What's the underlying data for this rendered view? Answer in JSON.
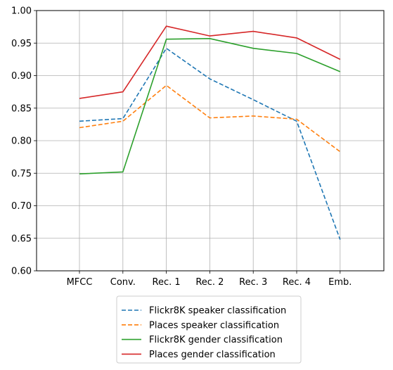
{
  "chart_data": {
    "type": "line",
    "categories": [
      "MFCC",
      "Conv.",
      "Rec. 1",
      "Rec. 2",
      "Rec. 3",
      "Rec. 4",
      "Emb."
    ],
    "ylim": [
      0.6,
      1.0
    ],
    "yticks": [
      "0.60",
      "0.65",
      "0.70",
      "0.75",
      "0.80",
      "0.85",
      "0.90",
      "0.95",
      "1.00"
    ],
    "grid": true,
    "legend_position": "bottom",
    "series": [
      {
        "name": "Flickr8K speaker classification",
        "color": "#1f77b4",
        "dashed": true,
        "values": [
          0.83,
          0.834,
          0.942,
          0.895,
          0.863,
          0.83,
          0.648
        ]
      },
      {
        "name": "Places speaker classification",
        "color": "#ff7f0e",
        "dashed": true,
        "values": [
          0.82,
          0.83,
          0.885,
          0.835,
          0.838,
          0.833,
          0.783
        ]
      },
      {
        "name": "Flickr8K gender classification",
        "color": "#2ca02c",
        "dashed": false,
        "values": [
          0.749,
          0.752,
          0.956,
          0.957,
          0.942,
          0.934,
          0.906
        ]
      },
      {
        "name": "Places gender classification",
        "color": "#d62728",
        "dashed": false,
        "values": [
          0.865,
          0.875,
          0.976,
          0.961,
          0.968,
          0.958,
          0.925
        ]
      }
    ]
  }
}
